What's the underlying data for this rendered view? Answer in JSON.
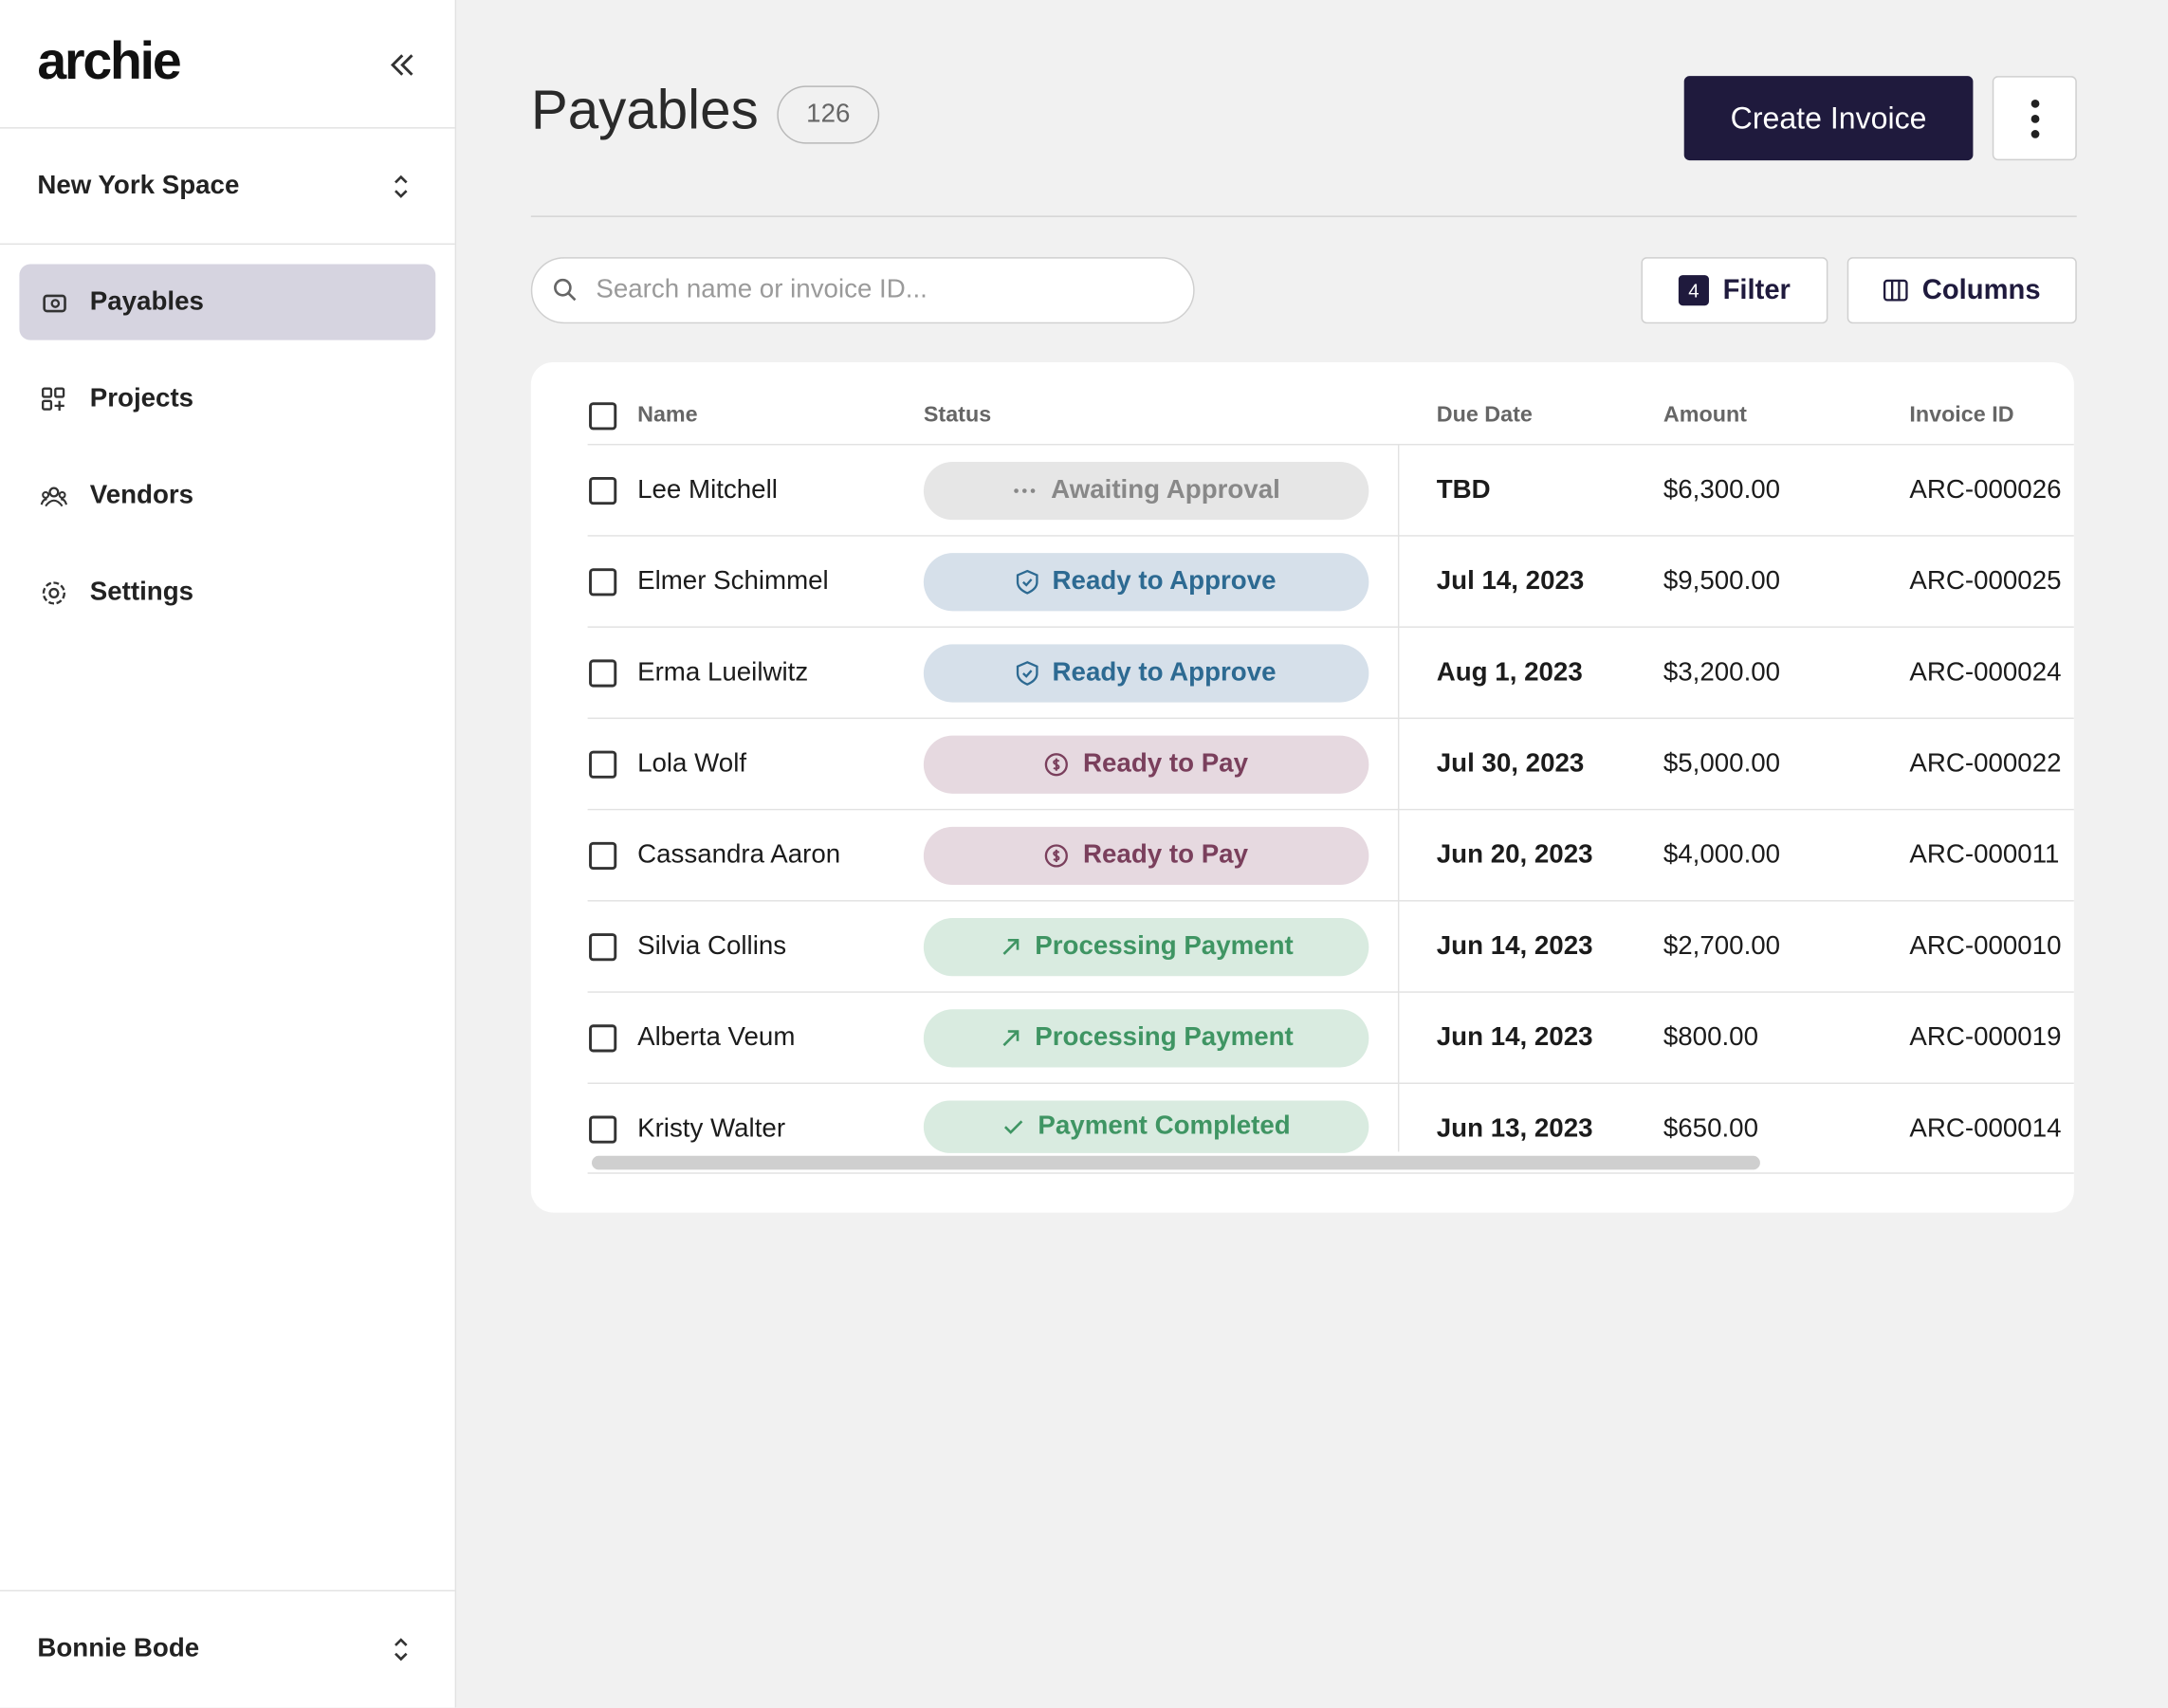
{
  "sidebar": {
    "logo": "archie",
    "workspace": "New York Space",
    "nav": [
      "Payables",
      "Projects",
      "Vendors",
      "Settings"
    ],
    "user": "Bonnie Bode"
  },
  "header": {
    "title": "Payables",
    "count": "126",
    "create_button": "Create Invoice"
  },
  "toolbar": {
    "search_placeholder": "Search name or invoice ID...",
    "filter_count": "4",
    "filter": "Filter",
    "columns": "Columns"
  },
  "table": {
    "columns": [
      "Name",
      "Status",
      "Due Date",
      "Amount",
      "Invoice ID"
    ],
    "rows": [
      [
        "Lee Mitchell",
        "Awaiting Approval",
        "TBD",
        "$6,300.00",
        "ARC-000026"
      ],
      [
        "Elmer Schimmel",
        "Ready to Approve",
        "Jul 14, 2023",
        "$9,500.00",
        "ARC-000025"
      ],
      [
        "Erma Lueilwitz",
        "Ready to Approve",
        "Aug 1, 2023",
        "$3,200.00",
        "ARC-000024"
      ],
      [
        "Lola Wolf",
        "Ready to Pay",
        "Jul 30, 2023",
        "$5,000.00",
        "ARC-000022"
      ],
      [
        "Cassandra Aaron",
        "Ready to Pay",
        "Jun 20, 2023",
        "$4,000.00",
        "ARC-000011"
      ],
      [
        "Silvia Collins",
        "Processing Payment",
        "Jun 14, 2023",
        "$2,700.00",
        "ARC-000010"
      ],
      [
        "Alberta Veum",
        "Processing Payment",
        "Jun 14, 2023",
        "$800.00",
        "ARC-000019"
      ],
      [
        "Kristy Walter",
        "Payment Completed",
        "Jun 13, 2023",
        "$650.00",
        "ARC-000014"
      ]
    ]
  }
}
